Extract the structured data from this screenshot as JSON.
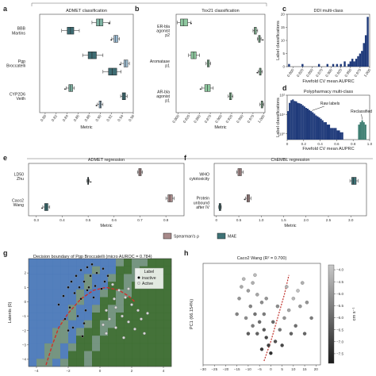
{
  "colors": {
    "spearman": "#a88a8a",
    "mae": "#3e7276",
    "admet_cls_boxes": [
      "#7fb3a3",
      "#3e6c73",
      "#9fc0d8",
      "#3e6c73",
      "#a8c8dc",
      "#3e6c73"
    ],
    "tox_boxes": "#8fc9a0",
    "ddi_bars": "#1f3a7a",
    "poly_bars": "#1f3a7a",
    "reclass_bars": "#3e7e72",
    "cmap_top": "#c8c8c8",
    "cmap_bottom": "#1a1a1a",
    "boundary_green": "#3a6a2e",
    "boundary_blue": "#4a78b8"
  },
  "legend_reg": {
    "spearman": "Spearman's ρ",
    "mae": "MAE"
  },
  "chart_data": [
    {
      "id": "a",
      "panel_label": "a",
      "type": "box",
      "title": "ADMET classification",
      "xlabel": "Metric",
      "xlim": [
        0.79,
        0.96
      ],
      "xticks": [
        "0.80",
        "0.82",
        "0.84",
        "0.86",
        "0.88",
        "0.90",
        "0.92",
        "0.94",
        "0.96"
      ],
      "categories": [
        "BBB\nMartins",
        "Pgp\nBroccatelli",
        "CYP2D6\nVeith"
      ],
      "boxes": [
        {
          "cat": 0,
          "q1": 0.893,
          "med": 0.899,
          "q3": 0.905,
          "wmin": 0.885,
          "wmax": 0.918,
          "fliers": [
            0.916
          ]
        },
        {
          "cat": 0,
          "q1": 0.84,
          "med": 0.846,
          "q3": 0.852,
          "wmin": 0.83,
          "wmax": 0.862,
          "fliers": []
        },
        {
          "cat": 0,
          "q1": 0.925,
          "med": 0.928,
          "q3": 0.932,
          "wmin": 0.921,
          "wmax": 0.935,
          "fliers": [
            0.92
          ]
        },
        {
          "cat": 1,
          "q1": 0.878,
          "med": 0.885,
          "q3": 0.893,
          "wmin": 0.868,
          "wmax": 0.905,
          "fliers": []
        },
        {
          "cat": 1,
          "q1": 0.943,
          "med": 0.946,
          "q3": 0.95,
          "wmin": 0.938,
          "wmax": 0.953,
          "fliers": [
            0.936
          ]
        },
        {
          "cat": 1,
          "q1": 0.915,
          "med": 0.922,
          "q3": 0.93,
          "wmin": 0.905,
          "wmax": 0.938,
          "fliers": []
        },
        {
          "cat": 2,
          "q1": 0.843,
          "med": 0.846,
          "q3": 0.85,
          "wmin": 0.838,
          "wmax": 0.853,
          "fliers": [
            0.836
          ]
        },
        {
          "cat": 2,
          "q1": 0.94,
          "med": 0.943,
          "q3": 0.946,
          "wmin": 0.937,
          "wmax": 0.949,
          "fliers": []
        },
        {
          "cat": 2,
          "q1": 0.898,
          "med": 0.9,
          "q3": 0.902,
          "wmin": 0.895,
          "wmax": 0.905,
          "fliers": [
            0.893
          ]
        }
      ]
    },
    {
      "id": "b",
      "panel_label": "b",
      "type": "box",
      "title": "Tox21 classification",
      "xlabel": "Metric",
      "xlim": [
        0.795,
        1.003
      ],
      "xticks": [
        "0.800",
        "0.825",
        "0.850",
        "0.875",
        "0.900",
        "0.925",
        "0.950",
        "0.975",
        "1.000"
      ],
      "categories": [
        "ER-bla\nagonist\np2",
        "Aromatase\np1",
        "AR-bla\nagonist\np1"
      ],
      "boxes": [
        {
          "cat": 0,
          "q1": 0.805,
          "med": 0.812,
          "q3": 0.822,
          "wmin": 0.798,
          "wmax": 0.83,
          "fliers": [
            0.83
          ]
        },
        {
          "cat": 0,
          "q1": 0.978,
          "med": 0.98,
          "q3": 0.983,
          "wmin": 0.975,
          "wmax": 0.986,
          "fliers": []
        },
        {
          "cat": 0,
          "q1": 0.988,
          "med": 0.99,
          "q3": 0.992,
          "wmin": 0.985,
          "wmax": 0.994,
          "fliers": [
            0.998
          ]
        },
        {
          "cat": 1,
          "q1": 0.83,
          "med": 0.836,
          "q3": 0.842,
          "wmin": 0.824,
          "wmax": 0.85,
          "fliers": []
        },
        {
          "cat": 1,
          "q1": 0.868,
          "med": 0.87,
          "q3": 0.873,
          "wmin": 0.865,
          "wmax": 0.876,
          "fliers": []
        },
        {
          "cat": 1,
          "q1": 0.99,
          "med": 0.992,
          "q3": 0.994,
          "wmin": 0.987,
          "wmax": 0.997,
          "fliers": [
            0.985
          ]
        },
        {
          "cat": 2,
          "q1": 0.862,
          "med": 0.868,
          "q3": 0.875,
          "wmin": 0.855,
          "wmax": 0.882,
          "fliers": [
            0.852
          ]
        },
        {
          "cat": 2,
          "q1": 0.92,
          "med": 0.922,
          "q3": 0.925,
          "wmin": 0.917,
          "wmax": 0.928,
          "fliers": []
        },
        {
          "cat": 2,
          "q1": 0.994,
          "med": 0.996,
          "q3": 0.998,
          "wmin": 0.991,
          "wmax": 1.0,
          "fliers": []
        }
      ]
    },
    {
      "id": "c",
      "panel_label": "c",
      "type": "bar",
      "title": "DDI multi-class",
      "xlabel": "Fivefold CV mean AUPRC",
      "ylabel": "Label classifications",
      "xlim": [
        0.785,
        1.0
      ],
      "ylim": [
        0,
        20
      ],
      "xticks": [
        "0.800",
        "0.825",
        "0.850",
        "0.875",
        "0.900",
        "0.925",
        "0.950",
        "0.975",
        "1.000"
      ],
      "yticks": [
        "0",
        "5",
        "10",
        "15",
        "20"
      ],
      "x": [
        0.79,
        0.825,
        0.868,
        0.89,
        0.905,
        0.915,
        0.925,
        0.935,
        0.945,
        0.95,
        0.955,
        0.96,
        0.965,
        0.97,
        0.975,
        0.98,
        0.985,
        0.99,
        0.995
      ],
      "values": [
        1,
        1,
        1,
        1,
        1,
        1,
        1,
        2,
        1,
        2,
        3,
        2,
        3,
        4,
        5,
        6,
        9,
        12,
        19
      ]
    },
    {
      "id": "d",
      "panel_label": "d",
      "type": "bar",
      "title": "Polypharmacy multi-class",
      "xlabel": "Fivefold CV mean AUPRC",
      "ylabel": "Label classifications",
      "yscale": "log",
      "xlim": [
        0.0,
        1.0
      ],
      "ylim": [
        1,
        100
      ],
      "xticks": [
        "0",
        "0.2",
        "0.4",
        "0.6",
        "0.8",
        "1.0"
      ],
      "yticks": [
        "10⁰",
        "10¹",
        "10²"
      ],
      "x": [
        0.01,
        0.03,
        0.05,
        0.07,
        0.09,
        0.11,
        0.13,
        0.15,
        0.17,
        0.19,
        0.21,
        0.23,
        0.25,
        0.27,
        0.29,
        0.31,
        0.33,
        0.35,
        0.37,
        0.39,
        0.41,
        0.43,
        0.45,
        0.47,
        0.49,
        0.51,
        0.53,
        0.55,
        0.57,
        0.59,
        0.61,
        0.63,
        0.65,
        0.67
      ],
      "values": [
        15,
        40,
        55,
        60,
        50,
        48,
        40,
        38,
        35,
        30,
        26,
        22,
        20,
        17,
        15,
        13,
        11,
        9,
        8,
        7,
        6,
        5,
        4,
        4,
        3,
        3,
        2,
        2,
        2,
        2,
        1.5,
        1.5,
        1.2,
        1.2
      ],
      "reclassified_x": [
        0.87,
        0.89,
        0.91,
        0.93,
        0.95
      ],
      "reclassified_values": [
        3,
        4,
        5,
        4,
        3
      ],
      "annotations": [
        "Raw labels",
        "Reclassified"
      ]
    },
    {
      "id": "e",
      "panel_label": "e",
      "type": "box",
      "title": "ADMET regression",
      "xlabel": "Metric",
      "xlim": [
        0.27,
        0.87
      ],
      "xticks": [
        "0.3",
        "0.4",
        "0.5",
        "0.6",
        "0.7",
        "0.8"
      ],
      "categories": [
        "LD50\nZhu",
        "Caco2\nWang"
      ],
      "boxes": [
        {
          "cat": 0,
          "metric": "spearman",
          "q1": 0.695,
          "med": 0.7,
          "q3": 0.705,
          "wmin": 0.69,
          "wmax": 0.71,
          "fliers": []
        },
        {
          "cat": 0,
          "metric": "mae",
          "q1": 0.498,
          "med": 0.5,
          "q3": 0.502,
          "wmin": 0.495,
          "wmax": 0.505,
          "fliers": [
            0.51
          ]
        },
        {
          "cat": 1,
          "metric": "spearman",
          "q1": 0.808,
          "med": 0.815,
          "q3": 0.825,
          "wmin": 0.8,
          "wmax": 0.832,
          "fliers": []
        },
        {
          "cat": 1,
          "metric": "mae",
          "q1": 0.332,
          "med": 0.338,
          "q3": 0.345,
          "wmin": 0.325,
          "wmax": 0.352,
          "fliers": [
            0.322
          ]
        }
      ]
    },
    {
      "id": "f",
      "panel_label": "f",
      "type": "box",
      "title": "ChEMBL regression",
      "xlabel": "Metric",
      "xlim": [
        -0.05,
        3.35
      ],
      "xticks": [
        "0",
        "0.5",
        "1.0",
        "1.5",
        "2.0",
        "2.5",
        "3.0"
      ],
      "categories": [
        "WHO\ncytotoxicity",
        "Protein\nunbound\nafter IV"
      ],
      "boxes": [
        {
          "cat": 0,
          "metric": "spearman",
          "q1": 0.48,
          "med": 0.52,
          "q3": 0.56,
          "wmin": 0.45,
          "wmax": 0.6,
          "fliers": []
        },
        {
          "cat": 0,
          "metric": "mae",
          "q1": 3.02,
          "med": 3.06,
          "q3": 3.12,
          "wmin": 2.98,
          "wmax": 3.16,
          "fliers": []
        },
        {
          "cat": 1,
          "metric": "spearman",
          "q1": 0.68,
          "med": 0.71,
          "q3": 0.74,
          "wmin": 0.65,
          "wmax": 0.77,
          "fliers": [
            0.63
          ]
        },
        {
          "cat": 1,
          "metric": "mae",
          "q1": 0.06,
          "med": 0.08,
          "q3": 0.1,
          "wmin": 0.05,
          "wmax": 0.11,
          "fliers": []
        }
      ]
    },
    {
      "id": "g",
      "panel_label": "g",
      "type": "scatter",
      "title": "Decision boundary of Pgp Broccatelli (micro AUROC = 0.784)",
      "ylabel": "Latents (0)",
      "xlim": [
        -4.5,
        4.5
      ],
      "ylim": [
        -4.5,
        3.0
      ],
      "xticks": [
        "−4",
        "−2",
        "0",
        "2",
        "4"
      ],
      "yticks": [
        "−4",
        "−3",
        "−2",
        "−1",
        "0",
        "1",
        "2"
      ],
      "legend": {
        "title": "Label",
        "entries": [
          "inactive",
          "Active"
        ]
      },
      "inactive": [
        [
          -1.2,
          2.2
        ],
        [
          -0.8,
          2.4
        ],
        [
          -0.5,
          2.6
        ],
        [
          -1.5,
          1.8
        ],
        [
          -1.8,
          1.4
        ],
        [
          -2.0,
          1.0
        ],
        [
          -1.6,
          0.6
        ],
        [
          -1.0,
          1.4
        ],
        [
          -0.6,
          1.8
        ],
        [
          -0.2,
          2.0
        ],
        [
          0.2,
          2.3
        ],
        [
          0.5,
          1.8
        ],
        [
          -2.3,
          0.4
        ],
        [
          -2.6,
          -0.2
        ],
        [
          -1.9,
          -0.4
        ],
        [
          -1.2,
          0.2
        ],
        [
          -0.8,
          0.8
        ],
        [
          -0.3,
          1.1
        ],
        [
          -1.4,
          -1.0
        ],
        [
          -0.9,
          -0.6
        ],
        [
          -2.2,
          -1.2
        ],
        [
          -1.7,
          -1.8
        ],
        [
          -1.0,
          -1.5
        ],
        [
          -0.4,
          0.3
        ],
        [
          0.1,
          0.9
        ],
        [
          -1.3,
          1.0
        ],
        [
          -0.7,
          1.0
        ],
        [
          -2.0,
          -2.0
        ],
        [
          -1.1,
          -2.4
        ],
        [
          0.3,
          1.4
        ]
      ],
      "active": [
        [
          0.8,
          1.2
        ],
        [
          1.2,
          0.8
        ],
        [
          1.6,
          0.3
        ],
        [
          2.0,
          -0.2
        ],
        [
          2.4,
          -0.6
        ],
        [
          1.0,
          -0.4
        ],
        [
          1.4,
          -1.0
        ],
        [
          1.8,
          -1.4
        ],
        [
          2.2,
          -1.9
        ],
        [
          0.6,
          -1.2
        ],
        [
          1.0,
          -1.8
        ],
        [
          0.4,
          -2.2
        ],
        [
          2.6,
          -1.2
        ],
        [
          3.0,
          -0.8
        ],
        [
          1.5,
          -2.5
        ],
        [
          0.9,
          0.2
        ],
        [
          0.4,
          -0.6
        ],
        [
          2.8,
          -2.2
        ],
        [
          0.2,
          -1.6
        ],
        [
          1.8,
          0.9
        ]
      ],
      "boundary": [
        [
          -3.4,
          -4.4
        ],
        [
          -3.0,
          -3.0
        ],
        [
          -2.6,
          -1.8
        ],
        [
          -2.0,
          -0.8
        ],
        [
          -1.2,
          0.2
        ],
        [
          -0.4,
          0.8
        ],
        [
          0.4,
          1.0
        ],
        [
          1.2,
          0.8
        ],
        [
          1.8,
          0.4
        ],
        [
          2.2,
          0.0
        ]
      ]
    },
    {
      "id": "h",
      "panel_label": "h",
      "type": "scatter",
      "title": "Caco2 Wang (R² = 0.700)",
      "ylabel": "PC1 (66.154%)",
      "colorbar_label": "cm s⁻¹",
      "xlim": [
        -30,
        22
      ],
      "ylim": [
        -14,
        12
      ],
      "xticks": [
        "−30",
        "−25",
        "−20",
        "−15",
        "−10",
        "−5",
        "0",
        "5",
        "10",
        "15",
        "20"
      ],
      "colorbar_ticks": [
        "−4.0",
        "−4.5",
        "−5.0",
        "−5.5",
        "−6.0",
        "−6.5",
        "−7.0",
        "−7.5"
      ],
      "colorbar_range": [
        -7.9,
        -3.8
      ],
      "points": [
        [
          -12,
          8,
          -4.2
        ],
        [
          -8,
          7,
          -4.4
        ],
        [
          -10,
          5,
          -4.8
        ],
        [
          -14,
          3,
          -5.0
        ],
        [
          -6,
          4,
          -4.6
        ],
        [
          -4,
          2,
          -5.2
        ],
        [
          -9,
          1,
          -5.4
        ],
        [
          -7,
          -1,
          -5.8
        ],
        [
          -5,
          -3,
          -6.0
        ],
        [
          -3,
          -5,
          -6.4
        ],
        [
          -2,
          -7,
          -6.8
        ],
        [
          -1,
          -9,
          -7.0
        ],
        [
          -6,
          -6,
          -6.2
        ],
        [
          -8,
          -4,
          -5.6
        ],
        [
          -11,
          -2,
          -5.2
        ],
        [
          -4,
          -10,
          -7.2
        ],
        [
          0,
          -11,
          -7.4
        ],
        [
          2,
          -8,
          -6.6
        ],
        [
          4,
          -5,
          -5.8
        ],
        [
          6,
          -2,
          -5.0
        ],
        [
          8,
          0,
          -4.6
        ],
        [
          10,
          3,
          -4.2
        ],
        [
          12,
          5,
          -4.0
        ],
        [
          14,
          7,
          -4.4
        ],
        [
          16,
          2,
          -5.0
        ],
        [
          18,
          -2,
          -5.6
        ],
        [
          9,
          -6,
          -6.2
        ],
        [
          5,
          -9,
          -6.8
        ],
        [
          -13,
          6,
          -4.5
        ],
        [
          -15,
          -1,
          -5.4
        ],
        [
          3,
          1,
          -5.2
        ],
        [
          7,
          6,
          -4.3
        ],
        [
          11,
          -4,
          -5.9
        ],
        [
          -2,
          3,
          -5.0
        ],
        [
          1,
          -3,
          -6.0
        ],
        [
          15,
          -6,
          -6.1
        ],
        [
          -7,
          9,
          -4.1
        ],
        [
          -10,
          -6,
          -6.3
        ],
        [
          13,
          1,
          -4.9
        ],
        [
          -3,
          -1,
          -5.6
        ]
      ],
      "trend": [
        [
          -3,
          -13
        ],
        [
          0,
          -8
        ],
        [
          3,
          -2
        ],
        [
          6,
          4
        ],
        [
          8,
          9
        ]
      ]
    }
  ]
}
